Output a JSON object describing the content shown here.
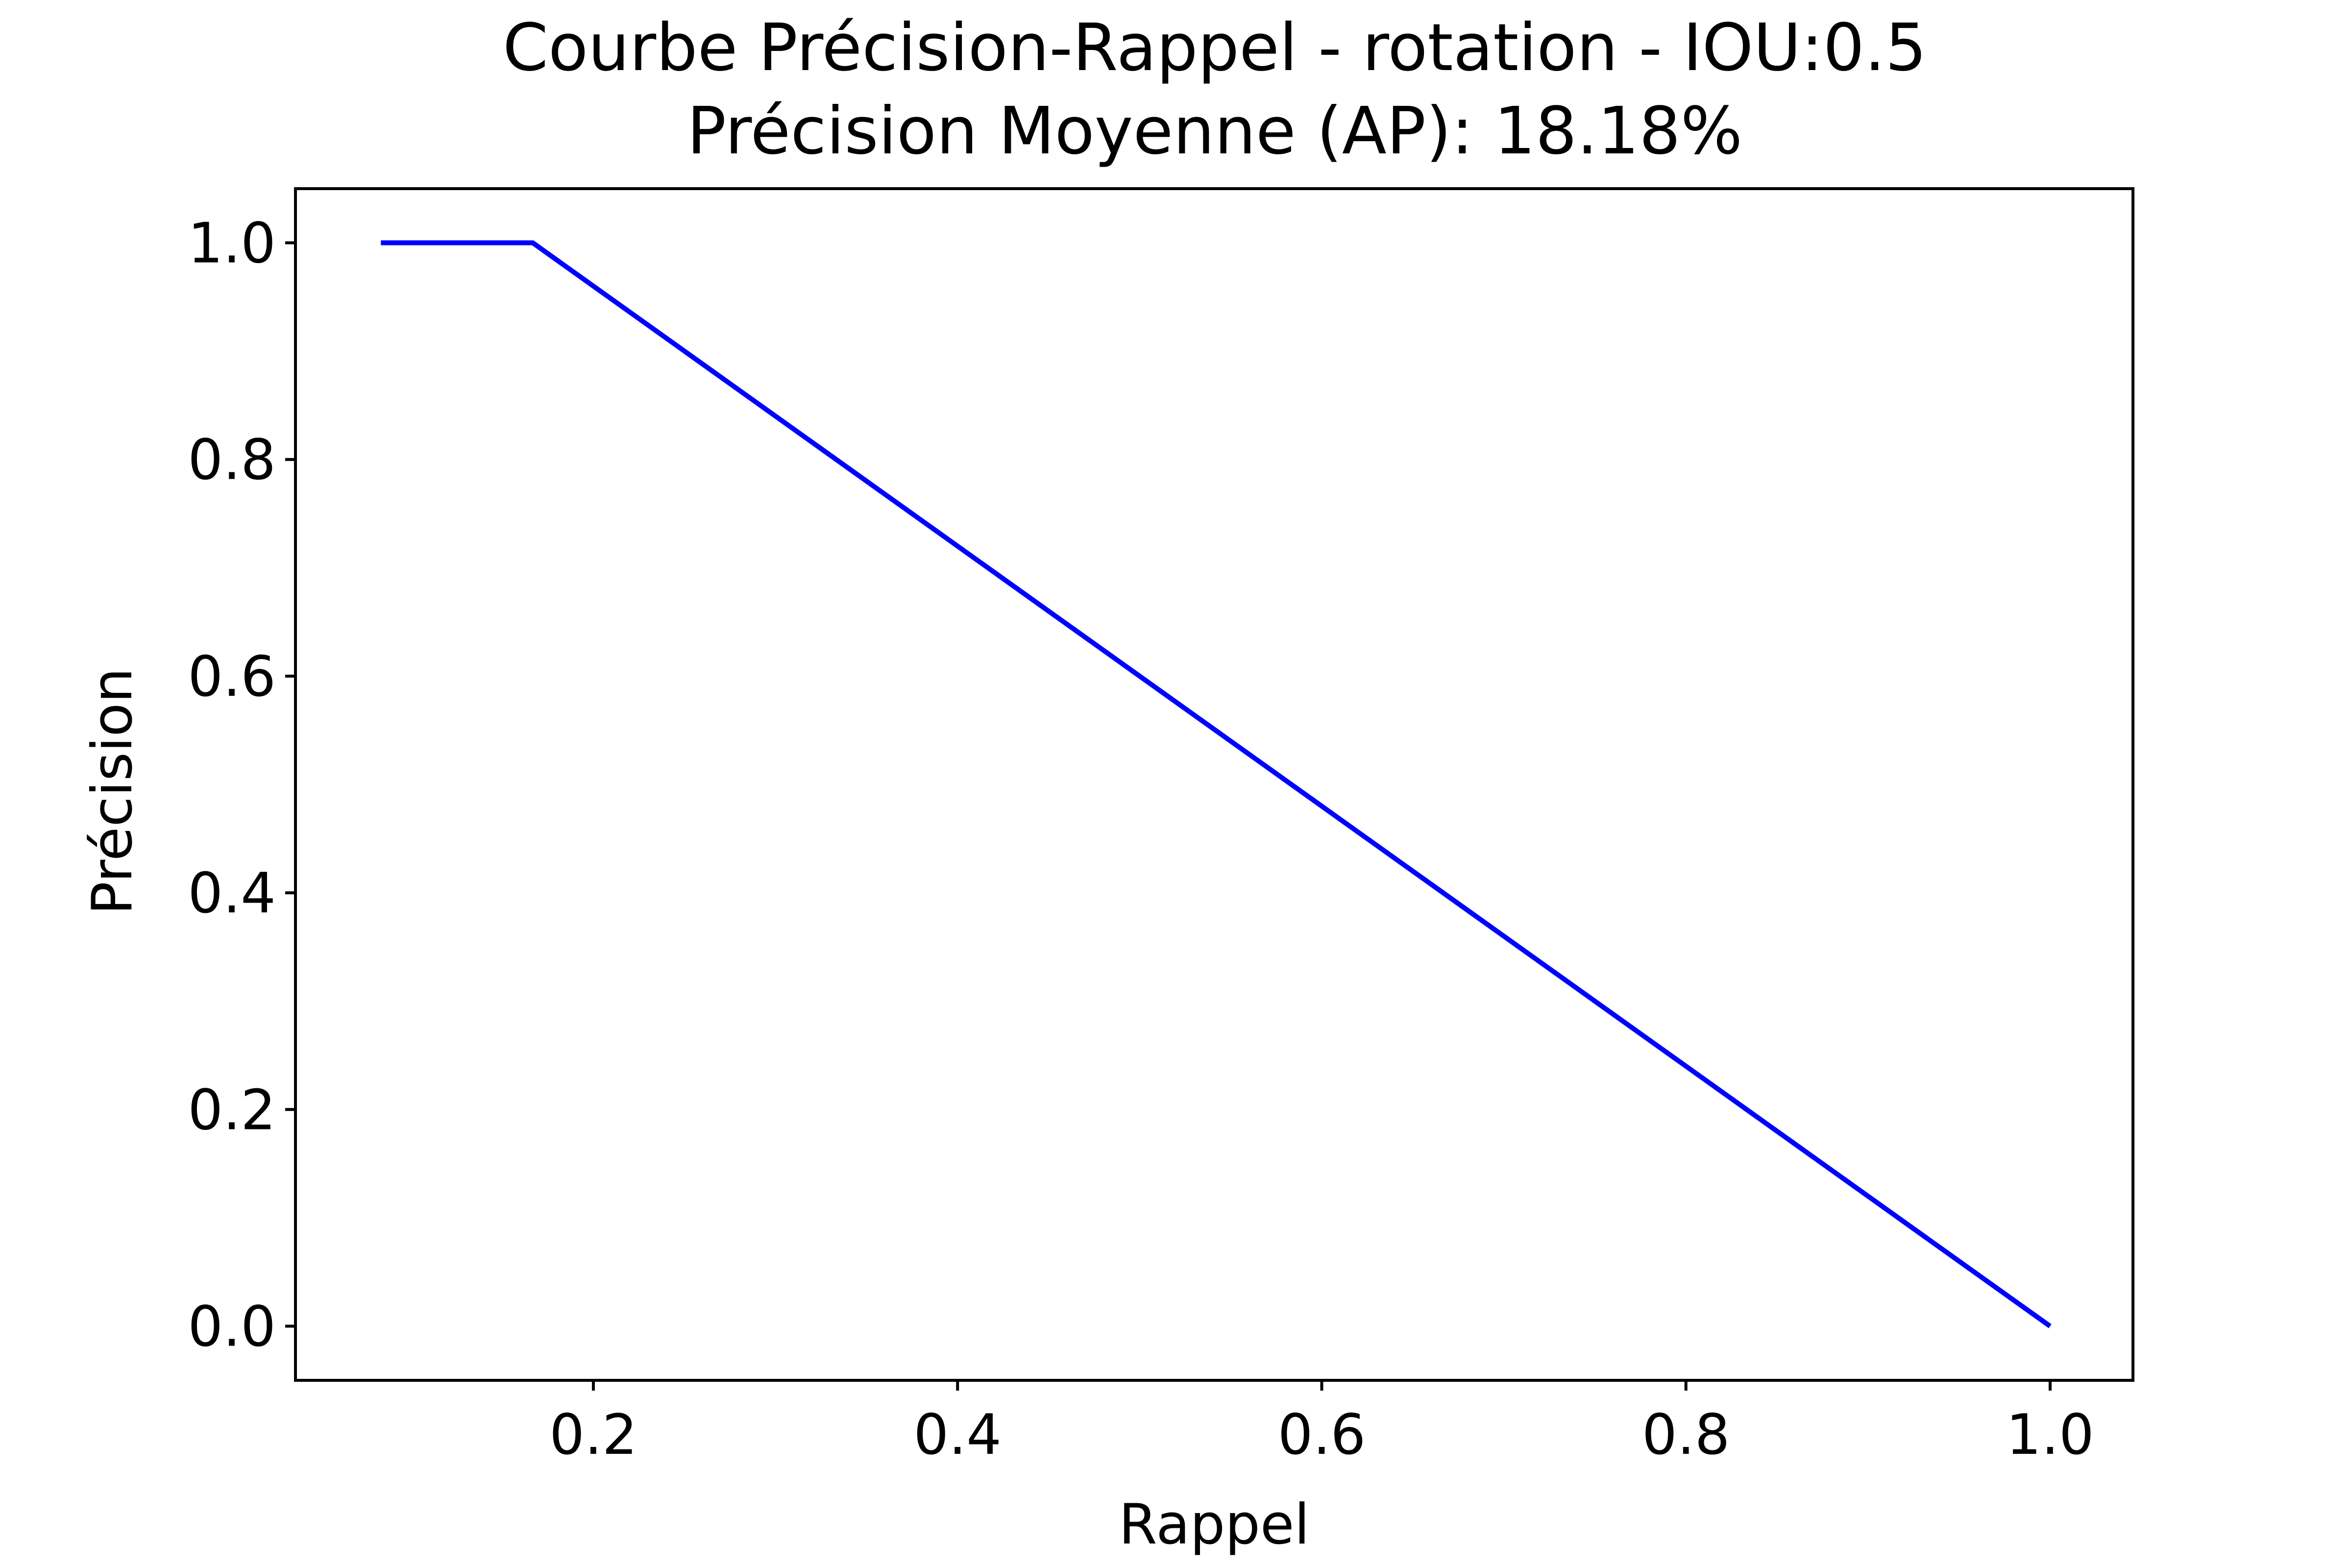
{
  "chart_data": {
    "type": "line",
    "title": "Courbe Précision-Rappel - rotation - IOU:0.5",
    "subtitle": "Précision Moyenne (AP): 18.18%",
    "xlabel": "Rappel",
    "ylabel": "Précision",
    "xlim": [
      0.0364,
      1.0455
    ],
    "ylim": [
      -0.05,
      1.05
    ],
    "x_ticks": [
      "0.2",
      "0.4",
      "0.6",
      "0.8",
      "1.0"
    ],
    "y_ticks": [
      "0.0",
      "0.2",
      "0.4",
      "0.6",
      "0.8",
      "1.0"
    ],
    "grid": false,
    "legend": "none",
    "series": [
      {
        "color": "#0000ff",
        "x": [
          0.0833,
          0.1667,
          1.0
        ],
        "y": [
          1.0,
          1.0,
          0.0
        ]
      }
    ]
  }
}
